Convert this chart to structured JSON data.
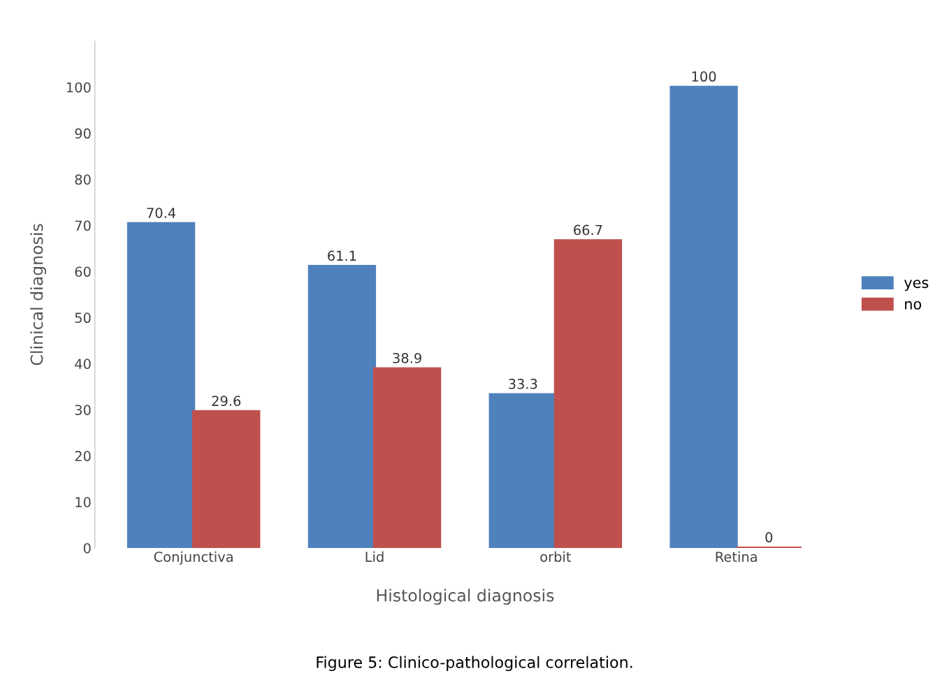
{
  "chart_data": {
    "type": "bar",
    "title": "Figure 5: Clinico-pathological correlation.",
    "xlabel": "Histological diagnosis",
    "ylabel": "Clinical diagnosis",
    "categories": [
      "Conjunctiva",
      "Lid",
      "orbit",
      "Retina"
    ],
    "series": [
      {
        "name": "yes",
        "color": "#4f81bd",
        "values": [
          70.4,
          61.1,
          33.3,
          100
        ]
      },
      {
        "name": "no",
        "color": "#c0504d",
        "values": [
          29.6,
          38.9,
          66.7,
          0
        ]
      }
    ],
    "ylim": [
      0,
      110
    ],
    "yticks": [
      0,
      10,
      20,
      30,
      40,
      50,
      60,
      70,
      80,
      90,
      100
    ],
    "data_labels": true,
    "legend": "right",
    "grid": false
  }
}
